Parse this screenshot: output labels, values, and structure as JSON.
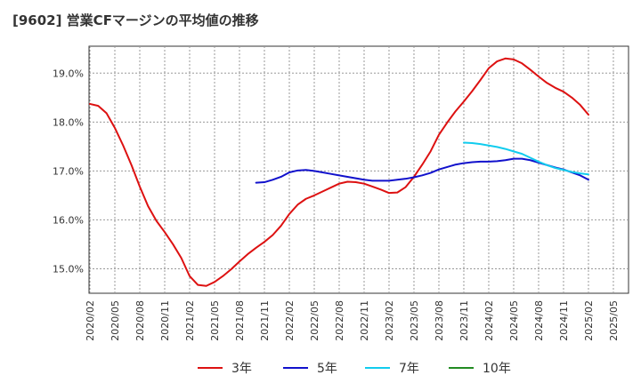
{
  "chart_data": {
    "type": "line",
    "title": "[9602]  営業CFマージンの平均値の推移",
    "xlabel": "",
    "ylabel": "",
    "x_ticks": [
      "2020/02",
      "2020/05",
      "2020/08",
      "2020/11",
      "2021/02",
      "2021/05",
      "2021/08",
      "2021/11",
      "2022/02",
      "2022/05",
      "2022/08",
      "2022/11",
      "2023/02",
      "2023/05",
      "2023/08",
      "2023/11",
      "2024/02",
      "2024/05",
      "2024/08",
      "2024/11",
      "2025/02",
      "2025/05"
    ],
    "y_ticks": [
      "15.0%",
      "16.0%",
      "17.0%",
      "18.0%",
      "19.0%"
    ],
    "ylim": [
      14.5,
      19.55
    ],
    "grid": true,
    "legend_position": "bottom",
    "series": [
      {
        "name": "3年",
        "color": "#dd1111",
        "points": [
          [
            "2020/02",
            18.37
          ],
          [
            "2020/03",
            18.33
          ],
          [
            "2020/04",
            18.18
          ],
          [
            "2020/05",
            17.88
          ],
          [
            "2020/06",
            17.52
          ],
          [
            "2020/07",
            17.12
          ],
          [
            "2020/08",
            16.68
          ],
          [
            "2020/09",
            16.28
          ],
          [
            "2020/10",
            15.98
          ],
          [
            "2020/11",
            15.75
          ],
          [
            "2020/12",
            15.5
          ],
          [
            "2021/01",
            15.22
          ],
          [
            "2021/02",
            14.85
          ],
          [
            "2021/03",
            14.67
          ],
          [
            "2021/04",
            14.65
          ],
          [
            "2021/05",
            14.73
          ],
          [
            "2021/06",
            14.85
          ],
          [
            "2021/07",
            14.99
          ],
          [
            "2021/08",
            15.15
          ],
          [
            "2021/09",
            15.3
          ],
          [
            "2021/10",
            15.43
          ],
          [
            "2021/11",
            15.55
          ],
          [
            "2021/12",
            15.69
          ],
          [
            "2022/01",
            15.88
          ],
          [
            "2022/02",
            16.12
          ],
          [
            "2022/03",
            16.31
          ],
          [
            "2022/04",
            16.43
          ],
          [
            "2022/05",
            16.5
          ],
          [
            "2022/06",
            16.58
          ],
          [
            "2022/07",
            16.66
          ],
          [
            "2022/08",
            16.74
          ],
          [
            "2022/09",
            16.78
          ],
          [
            "2022/10",
            16.77
          ],
          [
            "2022/11",
            16.74
          ],
          [
            "2022/12",
            16.68
          ],
          [
            "2023/01",
            16.62
          ],
          [
            "2023/02",
            16.55
          ],
          [
            "2023/03",
            16.56
          ],
          [
            "2023/04",
            16.67
          ],
          [
            "2023/05",
            16.88
          ],
          [
            "2023/06",
            17.13
          ],
          [
            "2023/07",
            17.4
          ],
          [
            "2023/08",
            17.74
          ],
          [
            "2023/09",
            17.99
          ],
          [
            "2023/10",
            18.22
          ],
          [
            "2023/11",
            18.42
          ],
          [
            "2023/12",
            18.63
          ],
          [
            "2024/01",
            18.86
          ],
          [
            "2024/02",
            19.1
          ],
          [
            "2024/03",
            19.24
          ],
          [
            "2024/04",
            19.3
          ],
          [
            "2024/05",
            19.28
          ],
          [
            "2024/06",
            19.2
          ],
          [
            "2024/07",
            19.07
          ],
          [
            "2024/08",
            18.93
          ],
          [
            "2024/09",
            18.8
          ],
          [
            "2024/10",
            18.7
          ],
          [
            "2024/11",
            18.62
          ],
          [
            "2024/12",
            18.5
          ],
          [
            "2025/01",
            18.35
          ],
          [
            "2025/02",
            18.15
          ]
        ]
      },
      {
        "name": "5年",
        "color": "#1111cc",
        "points": [
          [
            "2021/10",
            16.76
          ],
          [
            "2021/11",
            16.77
          ],
          [
            "2021/12",
            16.82
          ],
          [
            "2022/01",
            16.88
          ],
          [
            "2022/02",
            16.97
          ],
          [
            "2022/03",
            17.01
          ],
          [
            "2022/04",
            17.02
          ],
          [
            "2022/05",
            17.0
          ],
          [
            "2022/06",
            16.97
          ],
          [
            "2022/07",
            16.94
          ],
          [
            "2022/08",
            16.91
          ],
          [
            "2022/09",
            16.88
          ],
          [
            "2022/10",
            16.85
          ],
          [
            "2022/11",
            16.82
          ],
          [
            "2022/12",
            16.8
          ],
          [
            "2023/01",
            16.8
          ],
          [
            "2023/02",
            16.8
          ],
          [
            "2023/03",
            16.82
          ],
          [
            "2023/04",
            16.84
          ],
          [
            "2023/05",
            16.87
          ],
          [
            "2023/06",
            16.91
          ],
          [
            "2023/07",
            16.96
          ],
          [
            "2023/08",
            17.03
          ],
          [
            "2023/09",
            17.08
          ],
          [
            "2023/10",
            17.13
          ],
          [
            "2023/11",
            17.16
          ],
          [
            "2023/12",
            17.18
          ],
          [
            "2024/01",
            17.19
          ],
          [
            "2024/02",
            17.19
          ],
          [
            "2024/03",
            17.2
          ],
          [
            "2024/04",
            17.22
          ],
          [
            "2024/05",
            17.25
          ],
          [
            "2024/06",
            17.25
          ],
          [
            "2024/07",
            17.22
          ],
          [
            "2024/08",
            17.17
          ],
          [
            "2024/09",
            17.12
          ],
          [
            "2024/10",
            17.07
          ],
          [
            "2024/11",
            17.03
          ],
          [
            "2024/12",
            16.97
          ],
          [
            "2025/01",
            16.91
          ],
          [
            "2025/02",
            16.82
          ]
        ]
      },
      {
        "name": "7年",
        "color": "#11ccee",
        "points": [
          [
            "2023/11",
            17.58
          ],
          [
            "2023/12",
            17.57
          ],
          [
            "2024/01",
            17.55
          ],
          [
            "2024/02",
            17.52
          ],
          [
            "2024/03",
            17.49
          ],
          [
            "2024/04",
            17.45
          ],
          [
            "2024/05",
            17.4
          ],
          [
            "2024/06",
            17.35
          ],
          [
            "2024/07",
            17.27
          ],
          [
            "2024/08",
            17.19
          ],
          [
            "2024/09",
            17.12
          ],
          [
            "2024/10",
            17.06
          ],
          [
            "2024/11",
            17.02
          ],
          [
            "2024/12",
            16.98
          ],
          [
            "2025/01",
            16.95
          ],
          [
            "2025/02",
            16.93
          ]
        ]
      },
      {
        "name": "10年",
        "color": "#228b22",
        "points": []
      }
    ]
  }
}
